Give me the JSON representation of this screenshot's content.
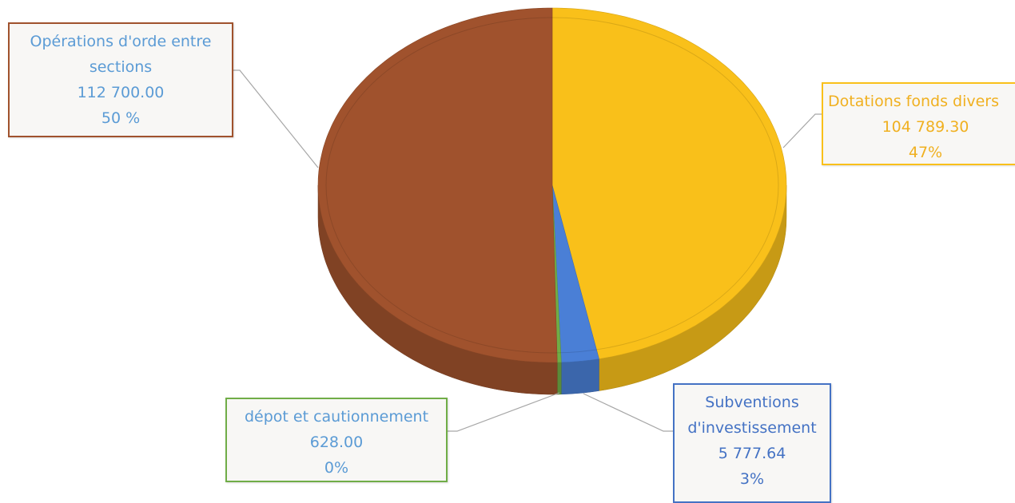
{
  "chart_data": {
    "type": "pie3d",
    "categories": [
      "Dotations fonds divers",
      "Subventions d'investissement",
      "dépot et cautionnement",
      "Opérations d'orde entre sections"
    ],
    "values": [
      104789.3,
      5777.64,
      628.0,
      112700.0
    ],
    "value_labels": [
      "104 789.30",
      "5 777.64",
      "628.00",
      "112 700.00"
    ],
    "percent_labels": [
      "47%",
      "3%",
      "0%",
      "50 %"
    ],
    "colors": [
      "#f9c01a",
      "#4a7fd6",
      "#70ad47",
      "#a0522d"
    ]
  }
}
